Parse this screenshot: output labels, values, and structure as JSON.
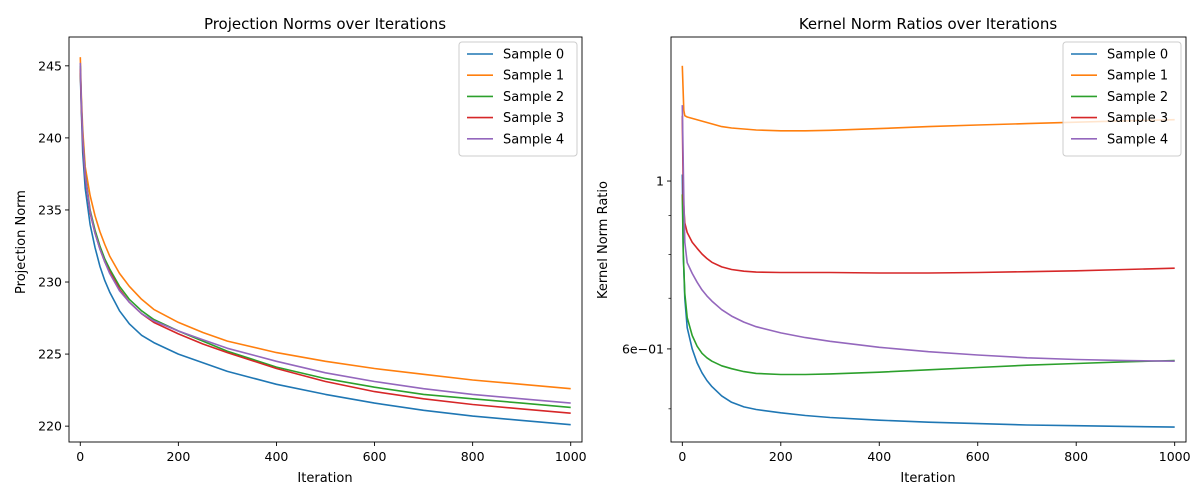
{
  "chart_data": [
    {
      "type": "line",
      "title": "Projection Norms over Iterations",
      "xlabel": "Iteration",
      "ylabel": "Projection Norm",
      "xlim": [
        -23,
        1023
      ],
      "ylim": [
        218.9,
        247.0
      ],
      "yscale": "linear",
      "xticks": [
        0,
        200,
        400,
        600,
        800,
        1000
      ],
      "xtick_labels": [
        "0",
        "200",
        "400",
        "600",
        "800",
        "1000"
      ],
      "yticks": [
        220,
        225,
        230,
        235,
        240,
        245
      ],
      "ytick_labels": [
        "220",
        "225",
        "230",
        "235",
        "240",
        "245"
      ],
      "minor_yticks": [],
      "grid": false,
      "legend_position": "top-right",
      "series": [
        {
          "name": "Sample 0",
          "color": "#1f77b4",
          "x": [
            0,
            2,
            5,
            10,
            20,
            30,
            40,
            50,
            60,
            80,
            100,
            125,
            150,
            200,
            250,
            300,
            400,
            500,
            600,
            700,
            800,
            900,
            1000
          ],
          "y": [
            244.5,
            242.0,
            239.0,
            236.5,
            234.0,
            232.4,
            231.1,
            230.1,
            229.3,
            228.0,
            227.1,
            226.3,
            225.8,
            225.0,
            224.4,
            223.8,
            222.9,
            222.2,
            221.6,
            221.1,
            220.7,
            220.4,
            220.1
          ]
        },
        {
          "name": "Sample 1",
          "color": "#ff7f0e",
          "x": [
            0,
            2,
            5,
            10,
            20,
            30,
            40,
            50,
            60,
            80,
            100,
            125,
            150,
            200,
            250,
            300,
            400,
            500,
            600,
            700,
            800,
            900,
            1000
          ],
          "y": [
            245.6,
            243.0,
            240.6,
            238.0,
            236.0,
            234.6,
            233.5,
            232.6,
            231.8,
            230.6,
            229.7,
            228.8,
            228.1,
            227.2,
            226.5,
            225.9,
            225.1,
            224.5,
            224.0,
            223.6,
            223.2,
            222.9,
            222.6
          ]
        },
        {
          "name": "Sample 2",
          "color": "#2ca02c",
          "x": [
            0,
            2,
            5,
            10,
            20,
            30,
            40,
            50,
            60,
            80,
            100,
            125,
            150,
            200,
            250,
            300,
            400,
            500,
            600,
            700,
            800,
            900,
            1000
          ],
          "y": [
            245.0,
            242.5,
            240.0,
            237.5,
            235.0,
            233.6,
            232.5,
            231.6,
            230.9,
            229.7,
            228.8,
            228.0,
            227.4,
            226.6,
            225.9,
            225.2,
            224.1,
            223.3,
            222.7,
            222.2,
            221.9,
            221.6,
            221.3
          ]
        },
        {
          "name": "Sample 3",
          "color": "#d62728",
          "x": [
            0,
            2,
            5,
            10,
            20,
            30,
            40,
            50,
            60,
            80,
            100,
            125,
            150,
            200,
            250,
            300,
            400,
            500,
            600,
            700,
            800,
            900,
            1000
          ],
          "y": [
            244.8,
            242.3,
            239.8,
            237.3,
            234.8,
            233.4,
            232.3,
            231.4,
            230.7,
            229.5,
            228.6,
            227.8,
            227.2,
            226.4,
            225.7,
            225.1,
            224.0,
            223.1,
            222.4,
            221.9,
            221.5,
            221.2,
            220.9
          ]
        },
        {
          "name": "Sample 4",
          "color": "#9467bd",
          "x": [
            0,
            2,
            5,
            10,
            20,
            30,
            40,
            50,
            60,
            80,
            100,
            125,
            150,
            200,
            250,
            300,
            400,
            500,
            600,
            700,
            800,
            900,
            1000
          ],
          "y": [
            245.2,
            242.6,
            240.0,
            237.4,
            234.9,
            233.4,
            232.3,
            231.4,
            230.6,
            229.4,
            228.6,
            227.8,
            227.3,
            226.6,
            226.0,
            225.4,
            224.5,
            223.7,
            223.1,
            222.6,
            222.2,
            221.9,
            221.6
          ]
        }
      ]
    },
    {
      "type": "line",
      "title": "Kernel Norm Ratios over Iterations",
      "xlabel": "Iteration",
      "ylabel": "Kernel Norm Ratio",
      "xlim": [
        -23,
        1023
      ],
      "ylim": [
        0.452,
        1.55
      ],
      "yscale": "log",
      "xticks": [
        0,
        200,
        400,
        600,
        800,
        1000
      ],
      "xtick_labels": [
        "0",
        "200",
        "400",
        "600",
        "800",
        "1000"
      ],
      "yticks": [
        0.6,
        1.0
      ],
      "ytick_labels": [
        "6e−01",
        "1"
      ],
      "minor_yticks": [
        0.5,
        0.7,
        0.8,
        0.9
      ],
      "grid": false,
      "legend_position": "top-right",
      "series": [
        {
          "name": "Sample 0",
          "color": "#1f77b4",
          "x": [
            0,
            2,
            5,
            10,
            20,
            30,
            40,
            50,
            60,
            80,
            100,
            125,
            150,
            200,
            250,
            300,
            400,
            500,
            600,
            700,
            800,
            900,
            1000
          ],
          "y": [
            1.02,
            0.8,
            0.7,
            0.64,
            0.6,
            0.575,
            0.558,
            0.545,
            0.535,
            0.52,
            0.51,
            0.503,
            0.499,
            0.494,
            0.49,
            0.487,
            0.483,
            0.48,
            0.478,
            0.476,
            0.475,
            0.474,
            0.473
          ]
        },
        {
          "name": "Sample 1",
          "color": "#ff7f0e",
          "x": [
            0,
            3,
            5,
            10,
            20,
            40,
            60,
            80,
            100,
            150,
            200,
            250,
            300,
            400,
            500,
            600,
            700,
            800,
            900,
            1000
          ],
          "y": [
            1.42,
            1.24,
            1.22,
            1.215,
            1.21,
            1.2,
            1.19,
            1.18,
            1.175,
            1.168,
            1.165,
            1.165,
            1.167,
            1.173,
            1.18,
            1.186,
            1.191,
            1.196,
            1.201,
            1.205
          ]
        },
        {
          "name": "Sample 2",
          "color": "#2ca02c",
          "x": [
            0,
            2,
            5,
            10,
            20,
            30,
            40,
            50,
            60,
            80,
            100,
            125,
            150,
            200,
            250,
            300,
            400,
            500,
            600,
            700,
            800,
            900,
            1000
          ],
          "y": [
            0.96,
            0.8,
            0.71,
            0.66,
            0.625,
            0.605,
            0.592,
            0.584,
            0.578,
            0.57,
            0.565,
            0.56,
            0.557,
            0.555,
            0.555,
            0.556,
            0.559,
            0.563,
            0.567,
            0.571,
            0.574,
            0.577,
            0.579
          ]
        },
        {
          "name": "Sample 3",
          "color": "#d62728",
          "x": [
            0,
            2,
            5,
            10,
            20,
            30,
            40,
            50,
            60,
            80,
            100,
            125,
            150,
            200,
            250,
            300,
            400,
            500,
            600,
            700,
            800,
            900,
            1000
          ],
          "y": [
            1.22,
            0.95,
            0.88,
            0.855,
            0.83,
            0.815,
            0.801,
            0.79,
            0.781,
            0.77,
            0.764,
            0.76,
            0.758,
            0.757,
            0.757,
            0.757,
            0.756,
            0.756,
            0.757,
            0.759,
            0.761,
            0.764,
            0.767
          ]
        },
        {
          "name": "Sample 4",
          "color": "#9467bd",
          "x": [
            0,
            3,
            5,
            10,
            20,
            30,
            40,
            50,
            60,
            80,
            100,
            125,
            150,
            200,
            250,
            300,
            400,
            500,
            600,
            700,
            800,
            900,
            1000
          ],
          "y": [
            1.26,
            0.95,
            0.83,
            0.78,
            0.755,
            0.735,
            0.718,
            0.705,
            0.694,
            0.676,
            0.663,
            0.651,
            0.642,
            0.63,
            0.621,
            0.614,
            0.603,
            0.595,
            0.589,
            0.584,
            0.581,
            0.579,
            0.578
          ]
        }
      ]
    }
  ]
}
